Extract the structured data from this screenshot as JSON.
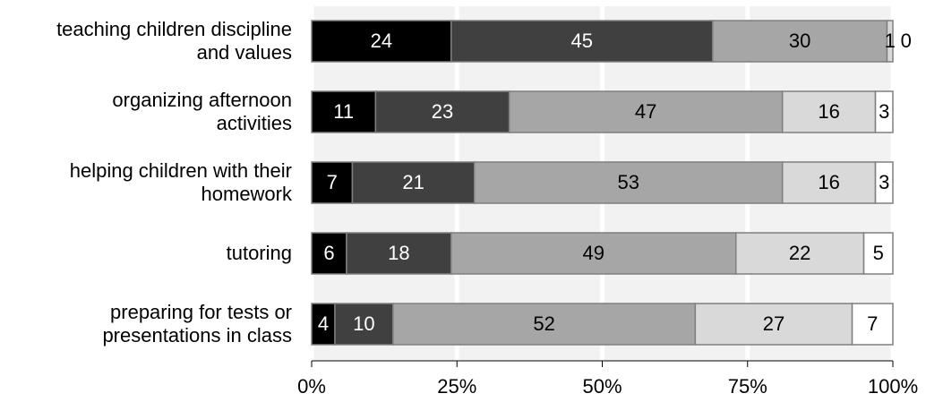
{
  "chart_data": {
    "type": "stacked-barh",
    "categories": [
      "teaching children discipline\nand values",
      "organizing afternoon\nactivities",
      "helping children with their\nhomework",
      "tutoring",
      "preparing for tests or\npresentations in class"
    ],
    "series": [
      {
        "color": "#000000",
        "label_color": "#ffffff",
        "values": [
          24,
          11,
          7,
          6,
          4
        ]
      },
      {
        "color": "#404040",
        "label_color": "#ffffff",
        "values": [
          45,
          23,
          21,
          18,
          10
        ]
      },
      {
        "color": "#a6a6a6",
        "label_color": "#000000",
        "values": [
          30,
          47,
          53,
          49,
          52
        ]
      },
      {
        "color": "#d9d9d9",
        "label_color": "#000000",
        "values": [
          1,
          16,
          16,
          22,
          27
        ]
      },
      {
        "color": "#ffffff",
        "label_color": "#000000",
        "values": [
          0,
          3,
          3,
          5,
          7
        ]
      }
    ],
    "xlim": [
      0,
      100
    ],
    "xticks": [
      {
        "value": 0,
        "label": "0%"
      },
      {
        "value": 25,
        "label": "25%"
      },
      {
        "value": 50,
        "label": "50%"
      },
      {
        "value": 75,
        "label": "75%"
      },
      {
        "value": 100,
        "label": "100%"
      }
    ],
    "grid": true
  }
}
